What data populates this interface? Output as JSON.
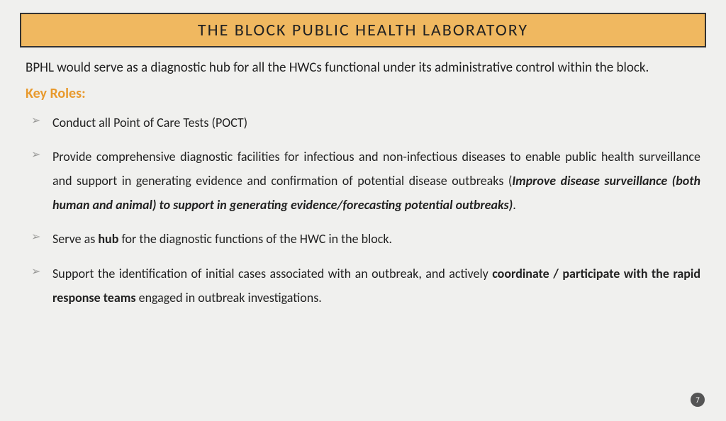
{
  "title": "THE BLOCK PUBLIC HEALTH LABORATORY",
  "intro": "BPHL would serve as a diagnostic hub for all the HWCs functional under its administrative control within the block.",
  "keyRolesLabel": "Key Roles:",
  "roles": {
    "r1": "Conduct all Point of Care Tests (POCT)",
    "r2_a": "Provide comprehensive diagnostic facilities for infectious and non-infectious diseases to enable public health surveillance and support in generating evidence and confirmation of potential disease outbreaks (",
    "r2_b": "Improve disease surveillance (both human and animal) to support in generating evidence/forecasting potential outbreaks)",
    "r2_c": ".",
    "r3_a": "Serve as ",
    "r3_b": "hub",
    "r3_c": " for the diagnostic functions of the HWC in the block.",
    "r4_a": "Support the identification of initial cases associated with an outbreak, and actively ",
    "r4_b": "coordinate / participate with the rapid response teams",
    "r4_c": " engaged in outbreak investigations."
  },
  "pageNumber": "7",
  "colors": {
    "titleBg": "#f0b860",
    "accent": "#e89a2e",
    "bodyBg": "#f0f0ee"
  }
}
